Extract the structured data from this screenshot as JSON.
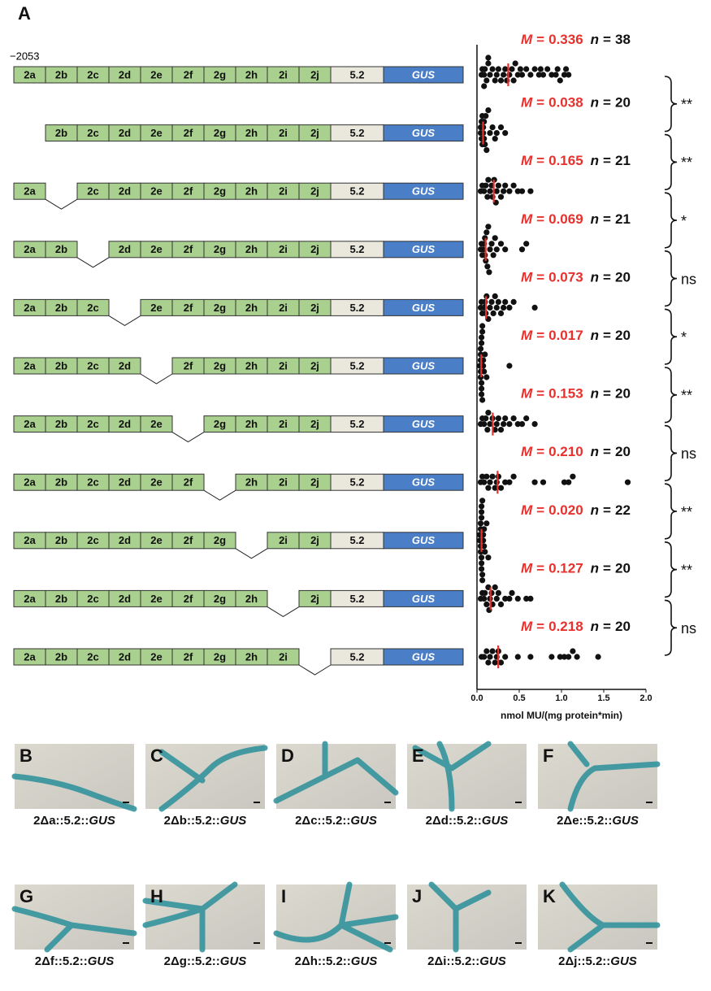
{
  "panel_label": "A",
  "position_label": "−2053",
  "mean_symbol": "M",
  "n_symbol": "n",
  "equals": "=",
  "constructs": [
    {
      "segments": [
        "2a",
        "2b",
        "2c",
        "2d",
        "2e",
        "2f",
        "2g",
        "2h",
        "2i",
        "2j",
        "5.2",
        "GUS"
      ],
      "mean": 0.336,
      "mean_label": "0.336",
      "n": 38,
      "points": [
        0.02,
        0.03,
        0.05,
        0.06,
        0.08,
        0.1,
        0.12,
        0.15,
        0.18,
        0.2,
        0.22,
        0.25,
        0.28,
        0.3,
        0.32,
        0.35,
        0.38,
        0.4,
        0.42,
        0.45,
        0.48,
        0.5,
        0.55,
        0.6,
        0.65,
        0.7,
        0.72,
        0.75,
        0.8,
        0.85,
        0.9,
        0.92,
        0.95,
        1.0,
        1.02,
        1.05,
        0.05,
        0.1
      ]
    },
    {
      "segments": [
        null,
        "2b",
        "2c",
        "2d",
        "2e",
        "2f",
        "2g",
        "2h",
        "2i",
        "2j",
        "5.2",
        "GUS"
      ],
      "mean": 0.038,
      "mean_label": "0.038",
      "n": 20,
      "points": [
        0.01,
        0.01,
        0.02,
        0.02,
        0.03,
        0.03,
        0.04,
        0.04,
        0.05,
        0.05,
        0.06,
        0.07,
        0.08,
        0.1,
        0.12,
        0.15,
        0.18,
        0.2,
        0.25,
        0.3
      ]
    },
    {
      "segments": [
        "2a",
        null,
        "2c",
        "2d",
        "2e",
        "2f",
        "2g",
        "2h",
        "2i",
        "2j",
        "5.2",
        "GUS"
      ],
      "mean": 0.165,
      "mean_label": "0.165",
      "n": 21,
      "points": [
        0.01,
        0.03,
        0.05,
        0.07,
        0.09,
        0.1,
        0.12,
        0.14,
        0.15,
        0.17,
        0.19,
        0.2,
        0.22,
        0.25,
        0.28,
        0.3,
        0.35,
        0.4,
        0.45,
        0.5,
        0.6
      ]
    },
    {
      "segments": [
        "2a",
        "2b",
        null,
        "2d",
        "2e",
        "2f",
        "2g",
        "2h",
        "2i",
        "2j",
        "5.2",
        "GUS"
      ],
      "mean": 0.069,
      "mean_label": "0.069",
      "n": 21,
      "points": [
        0.01,
        0.02,
        0.03,
        0.04,
        0.05,
        0.06,
        0.06,
        0.07,
        0.08,
        0.09,
        0.1,
        0.11,
        0.12,
        0.14,
        0.16,
        0.18,
        0.2,
        0.25,
        0.3,
        0.5,
        0.55
      ]
    },
    {
      "segments": [
        "2a",
        "2b",
        "2c",
        null,
        "2e",
        "2f",
        "2g",
        "2h",
        "2i",
        "2j",
        "5.2",
        "GUS"
      ],
      "mean": 0.073,
      "mean_label": "0.073",
      "n": 20,
      "points": [
        0.01,
        0.02,
        0.03,
        0.05,
        0.06,
        0.07,
        0.08,
        0.1,
        0.12,
        0.14,
        0.16,
        0.18,
        0.2,
        0.22,
        0.25,
        0.28,
        0.3,
        0.35,
        0.4,
        0.65
      ]
    },
    {
      "segments": [
        "2a",
        "2b",
        "2c",
        "2d",
        null,
        "2f",
        "2g",
        "2h",
        "2i",
        "2j",
        "5.2",
        "GUS"
      ],
      "mean": 0.017,
      "mean_label": "0.017",
      "n": 20,
      "points": [
        0,
        0.01,
        0.01,
        0.01,
        0.01,
        0.01,
        0.02,
        0.02,
        0.02,
        0.02,
        0.02,
        0.03,
        0.03,
        0.03,
        0.04,
        0.04,
        0.05,
        0.06,
        0.08,
        0.35
      ]
    },
    {
      "segments": [
        "2a",
        "2b",
        "2c",
        "2d",
        "2e",
        null,
        "2g",
        "2h",
        "2i",
        "2j",
        "5.2",
        "GUS"
      ],
      "mean": 0.153,
      "mean_label": "0.153",
      "n": 20,
      "points": [
        0.01,
        0.03,
        0.05,
        0.07,
        0.09,
        0.1,
        0.12,
        0.15,
        0.18,
        0.2,
        0.22,
        0.25,
        0.28,
        0.3,
        0.35,
        0.4,
        0.45,
        0.5,
        0.55,
        0.65
      ]
    },
    {
      "segments": [
        "2a",
        "2b",
        "2c",
        "2d",
        "2e",
        "2f",
        null,
        "2h",
        "2i",
        "2j",
        "5.2",
        "GUS"
      ],
      "mean": 0.21,
      "mean_label": "0.210",
      "n": 20,
      "points": [
        0.01,
        0.03,
        0.05,
        0.08,
        0.1,
        0.12,
        0.15,
        0.18,
        0.2,
        0.22,
        0.25,
        0.3,
        0.35,
        0.4,
        0.65,
        0.75,
        1.0,
        1.05,
        1.1,
        1.75
      ]
    },
    {
      "segments": [
        "2a",
        "2b",
        "2c",
        "2d",
        "2e",
        "2f",
        "2g",
        null,
        "2i",
        "2j",
        "5.2",
        "GUS"
      ],
      "mean": 0.02,
      "mean_label": "0.020",
      "n": 22,
      "points": [
        0,
        0,
        0.01,
        0.01,
        0.01,
        0.01,
        0.02,
        0.02,
        0.02,
        0.02,
        0.02,
        0.02,
        0.03,
        0.03,
        0.03,
        0.04,
        0.04,
        0.05,
        0.05,
        0.06,
        0.08,
        0.1
      ]
    },
    {
      "segments": [
        "2a",
        "2b",
        "2c",
        "2d",
        "2e",
        "2f",
        "2g",
        "2h",
        null,
        "2j",
        "5.2",
        "GUS"
      ],
      "mean": 0.127,
      "mean_label": "0.127",
      "n": 20,
      "points": [
        0.01,
        0.03,
        0.05,
        0.06,
        0.08,
        0.1,
        0.11,
        0.12,
        0.14,
        0.15,
        0.18,
        0.2,
        0.22,
        0.25,
        0.3,
        0.35,
        0.38,
        0.45,
        0.55,
        0.6
      ]
    },
    {
      "segments": [
        "2a",
        "2b",
        "2c",
        "2d",
        "2e",
        "2f",
        "2g",
        "2h",
        "2i",
        null,
        "5.2",
        "GUS"
      ],
      "mean": 0.218,
      "mean_label": "0.218",
      "n": 20,
      "points": [
        0.02,
        0.05,
        0.08,
        0.1,
        0.12,
        0.15,
        0.18,
        0.2,
        0.22,
        0.25,
        0.3,
        0.45,
        0.6,
        0.85,
        0.95,
        1.0,
        1.05,
        1.1,
        1.15,
        1.4
      ]
    }
  ],
  "significance": [
    "**",
    "**",
    "*",
    "ns",
    "*",
    "**",
    "ns",
    "**",
    "**",
    "ns"
  ],
  "x_axis": {
    "label": "nmol MU/(mg protein*min)",
    "lim": [
      0,
      2
    ],
    "ticks": [
      {
        "value": 0,
        "label": "0.0"
      },
      {
        "value": 0.5,
        "label": "0.5"
      },
      {
        "value": 1,
        "label": "1.0"
      },
      {
        "value": 1.5,
        "label": "1.5"
      },
      {
        "value": 2,
        "label": "2.0"
      }
    ]
  },
  "images": [
    {
      "letter": "B",
      "caption": "2Δa::5.2::",
      "caption_italic": "GUS"
    },
    {
      "letter": "C",
      "caption": "2Δb::5.2::",
      "caption_italic": "GUS"
    },
    {
      "letter": "D",
      "caption": "2Δc::5.2::",
      "caption_italic": "GUS"
    },
    {
      "letter": "E",
      "caption": "2Δd::5.2::",
      "caption_italic": "GUS"
    },
    {
      "letter": "F",
      "caption": "2Δe::5.2::",
      "caption_italic": "GUS"
    },
    {
      "letter": "G",
      "caption": "2Δf::5.2::",
      "caption_italic": "GUS"
    },
    {
      "letter": "H",
      "caption": "2Δg::5.2::",
      "caption_italic": "GUS"
    },
    {
      "letter": "I",
      "caption": "2Δh::5.2::",
      "caption_italic": "GUS"
    },
    {
      "letter": "J",
      "caption": "2Δi::5.2::",
      "caption_italic": "GUS"
    },
    {
      "letter": "K",
      "caption": "2Δj::5.2::",
      "caption_italic": "GUS"
    }
  ]
}
